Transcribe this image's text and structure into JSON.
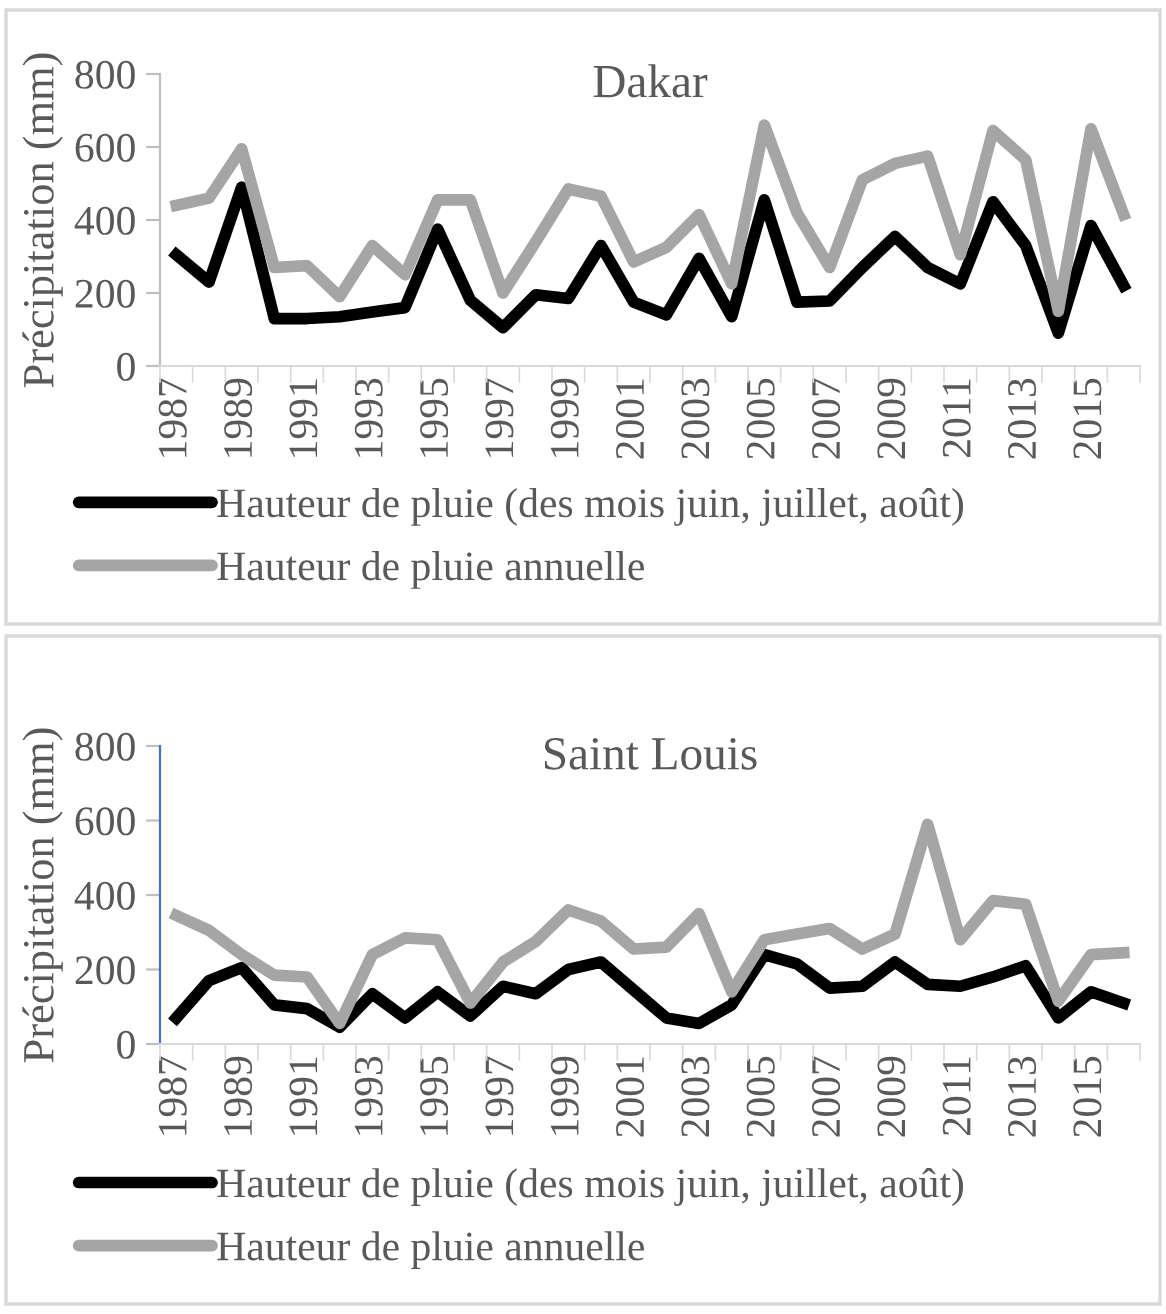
{
  "chart_data": [
    {
      "type": "line",
      "title": "Dakar",
      "ylabel": "Précipitation (mm)",
      "categories": [
        "1987",
        null,
        "1989",
        null,
        "1991",
        null,
        "1993",
        null,
        "1995",
        null,
        "1997",
        null,
        "1999",
        null,
        "2001",
        null,
        "2003",
        null,
        "2005",
        null,
        "2007",
        null,
        "2009",
        null,
        "2011",
        null,
        "2013",
        null,
        "2015",
        null
      ],
      "ylim": [
        0,
        800
      ],
      "yticks": [
        0,
        200,
        400,
        600,
        800
      ],
      "grid": false,
      "legend": "bottom",
      "marker": "none",
      "line_style": "solid",
      "series": [
        {
          "name": "Hauteur de pluie (des mois juin, juillet, août)",
          "color": "#000000",
          "values": [
            305,
            230,
            490,
            130,
            130,
            135,
            148,
            160,
            375,
            180,
            105,
            195,
            185,
            330,
            175,
            140,
            295,
            135,
            455,
            175,
            178,
            270,
            355,
            270,
            225,
            450,
            330,
            90,
            385,
            220
          ]
        },
        {
          "name": "Hauteur de pluie annuelle",
          "color": "#a5a5a5",
          "values": [
            440,
            460,
            595,
            270,
            275,
            190,
            330,
            250,
            455,
            455,
            200,
            340,
            485,
            465,
            285,
            325,
            415,
            225,
            660,
            420,
            270,
            510,
            555,
            575,
            305,
            645,
            565,
            150,
            650,
            415
          ]
        }
      ]
    },
    {
      "type": "line",
      "title": "Saint Louis",
      "ylabel": "Précipitation (mm)",
      "categories": [
        "1987",
        null,
        "1989",
        null,
        "1991",
        null,
        "1993",
        null,
        "1995",
        null,
        "1997",
        null,
        "1999",
        null,
        "2001",
        null,
        "2003",
        null,
        "2005",
        null,
        "2007",
        null,
        "2009",
        null,
        "2011",
        null,
        "2013",
        null,
        "2015",
        null
      ],
      "ylim": [
        0,
        800
      ],
      "yticks": [
        0,
        200,
        400,
        600,
        800
      ],
      "grid": false,
      "legend": "bottom",
      "marker": "none",
      "line_style": "solid",
      "series": [
        {
          "name": "Hauteur de pluie (des mois juin, juillet, août)",
          "color": "#000000",
          "values": [
            70,
            170,
            205,
            105,
            95,
            45,
            135,
            70,
            140,
            75,
            155,
            135,
            200,
            220,
            145,
            70,
            55,
            105,
            240,
            215,
            150,
            155,
            220,
            160,
            155,
            180,
            210,
            70,
            140,
            110
          ]
        },
        {
          "name": "Hauteur de pluie annuelle",
          "color": "#a5a5a5",
          "values": [
            345,
            305,
            240,
            185,
            180,
            55,
            240,
            285,
            280,
            110,
            220,
            275,
            360,
            330,
            255,
            260,
            350,
            140,
            280,
            295,
            310,
            255,
            295,
            590,
            280,
            385,
            375,
            115,
            240,
            245
          ]
        }
      ]
    }
  ]
}
